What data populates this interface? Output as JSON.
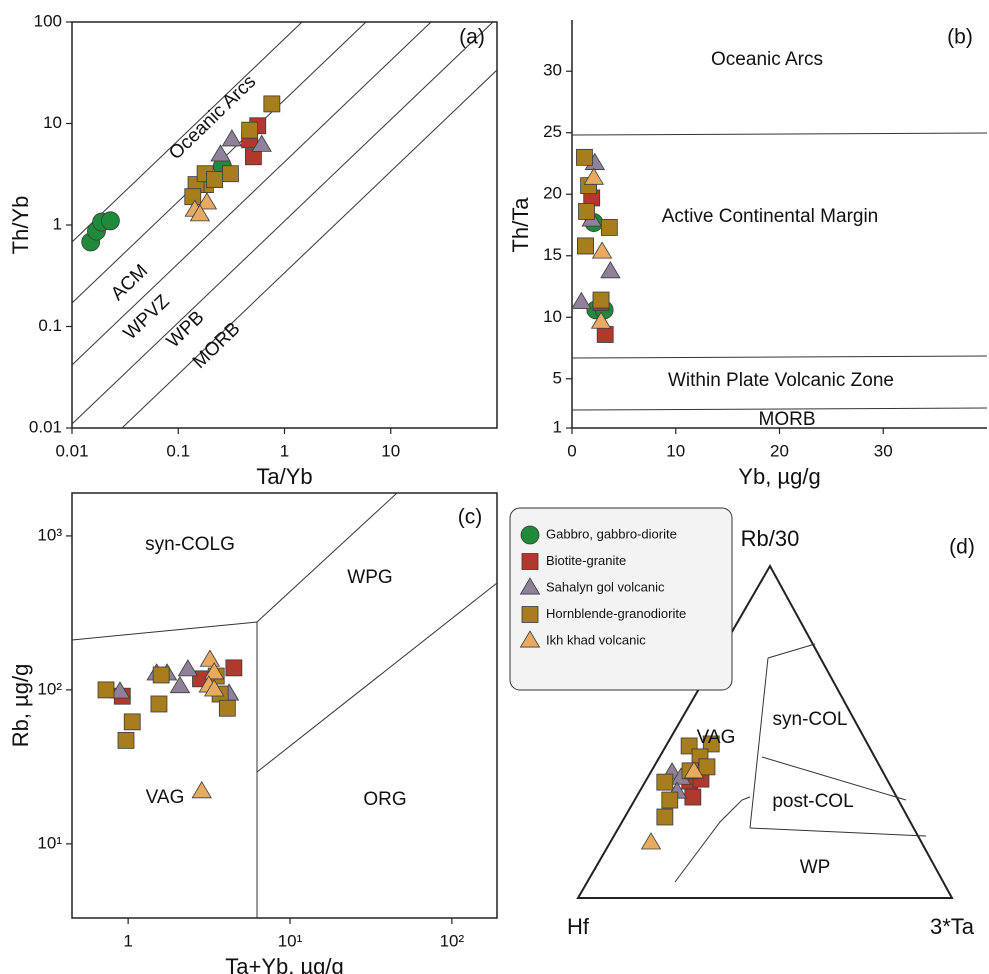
{
  "chart_data": [
    {
      "type": "scatter",
      "panel": "(a)",
      "xlabel": "Ta/Yb",
      "ylabel": "Th/Yb",
      "xscale": "log",
      "yscale": "log",
      "xlim": [
        0.01,
        100
      ],
      "ylim": [
        0.01,
        100
      ],
      "xticks": [
        0.01,
        0.1,
        1,
        10
      ],
      "yticks": [
        0.01,
        0.1,
        1,
        10,
        100
      ],
      "annotations": [
        "Oceanic Arcs",
        "ACM",
        "WPVZ",
        "WPB",
        "MORB"
      ],
      "series": [
        {
          "x": [
            0.015,
            0.017,
            0.019,
            0.023,
            0.26
          ],
          "y": [
            0.68,
            0.87,
            1.07,
            1.1,
            3.8
          ]
        },
        {
          "x": [
            0.56,
            0.47,
            0.51
          ],
          "y": [
            9.5,
            6.9,
            4.7
          ]
        },
        {
          "x": [
            0.32,
            0.61,
            0.25
          ],
          "y": [
            6.9,
            6.1,
            4.9
          ]
        },
        {
          "x": [
            0.76,
            0.47,
            0.31,
            0.18,
            0.147,
            0.137,
            0.179,
            0.22
          ],
          "y": [
            15.6,
            8.6,
            3.2,
            2.5,
            2.5,
            1.9,
            3.2,
            2.8
          ]
        },
        {
          "x": [
            0.186,
            0.143,
            0.16
          ],
          "y": [
            1.65,
            1.4,
            1.26
          ]
        }
      ]
    },
    {
      "type": "scatter",
      "panel": "(b)",
      "xlabel": "Yb, µg/g",
      "ylabel": "Th/Ta",
      "xscale": "linear",
      "yscale": "linear",
      "xlim": [
        0,
        40
      ],
      "ylim": [
        1,
        34
      ],
      "xticks": [
        0,
        10,
        20,
        30
      ],
      "yticks": [
        1,
        5,
        10,
        15,
        20,
        25,
        30
      ],
      "annotations": [
        "Oceanic Arcs",
        "Active Continental Margin",
        "Within Plate Volcanic Zone",
        "MORB"
      ],
      "series": [
        {
          "x": [
            2.1,
            2.3,
            3.1
          ],
          "y": [
            17.7,
            10.6,
            10.6
          ]
        },
        {
          "x": [
            1.9,
            1.3,
            2.8,
            3.2
          ],
          "y": [
            19.7,
            15.8,
            11.2,
            8.6
          ]
        },
        {
          "x": [
            2.2,
            3.7,
            0.9,
            1.9
          ],
          "y": [
            22.5,
            13.7,
            11.2,
            17.9
          ]
        },
        {
          "x": [
            1.2,
            1.6,
            1.4,
            1.3,
            3.6,
            2.8
          ],
          "y": [
            23.0,
            20.7,
            18.6,
            15.8,
            17.3,
            11.4
          ]
        },
        {
          "x": [
            2.1,
            2.9,
            2.8
          ],
          "y": [
            21.3,
            15.3,
            9.6
          ]
        }
      ]
    },
    {
      "type": "scatter",
      "panel": "(c)",
      "xlabel": "Ta+Yb, µg/g",
      "ylabel": "Rb, µg/g",
      "xscale": "log",
      "yscale": "log",
      "xlim": [
        0.45,
        190
      ],
      "ylim": [
        3.3,
        1900
      ],
      "xticks": [
        1,
        {
          "value": 10,
          "label": "10¹"
        },
        {
          "value": 100,
          "label": "10²"
        }
      ],
      "yticks": [
        {
          "value": 10,
          "label": "10¹"
        },
        {
          "value": 100,
          "label": "10²"
        },
        {
          "value": 1000,
          "label": "10³"
        }
      ],
      "annotations": [
        "syn-COLG",
        "WPG",
        "VAG",
        "ORG"
      ],
      "series": [
        {
          "x": [],
          "y": []
        },
        {
          "x": [
            0.92,
            2.8,
            4.5
          ],
          "y": [
            91,
            118,
            139
          ]
        },
        {
          "x": [
            0.89,
            1.5,
            1.74,
            2.09,
            2.34,
            4.2
          ],
          "y": [
            97,
            127,
            127,
            105,
            135,
            94
          ]
        },
        {
          "x": [
            0.73,
            1.6,
            3.5,
            3.7,
            4.1,
            1.55,
            1.06,
            0.97
          ],
          "y": [
            100,
            125,
            123,
            94,
            76,
            81,
            62,
            47
          ]
        },
        {
          "x": [
            3.2,
            3.4,
            3.15,
            3.4,
            2.85
          ],
          "y": [
            156,
            129,
            106,
            100,
            21.8
          ]
        }
      ]
    },
    {
      "type": "ternary",
      "panel": "(d)",
      "apex_top": "Rb/30",
      "apex_left": "Hf",
      "apex_right": "3*Ta",
      "annotations": [
        "VAG",
        "syn-COL",
        "post-COL",
        "WP"
      ],
      "series": [
        {
          "name": "Gabbro, gabbro-diorite",
          "color": "#1f8a3a",
          "marker": "circle",
          "values": []
        },
        {
          "name": "Biotite-granite",
          "color": "#b0392e",
          "marker": "square",
          "values": [
            [
              53.0,
              35.2,
              11.8
            ],
            [
              49.7,
              35.8,
              14.5
            ],
            [
              54.5,
              30.4,
              15.1
            ]
          ]
        },
        {
          "name": "Sahalyn gol volcanic",
          "color": "#8e8199",
          "marker": "triangle",
          "values": [
            [
              56.5,
              37.7,
              5.8
            ],
            [
              54.9,
              36.1,
              9.0
            ],
            [
              58.0,
              31.9,
              10.1
            ]
          ]
        },
        {
          "name": "Hornblende-granodiorite",
          "color": "#a77d1e",
          "marker": "square",
          "values": [
            [
              48.0,
              45.8,
              6.2
            ],
            [
              41.8,
              46.4,
              11.8
            ],
            [
              46.7,
              42.5,
              10.8
            ],
            [
              46.3,
              39.5,
              14.2
            ],
            [
              51.4,
              38.3,
              10.3
            ],
            [
              59.8,
              34.9,
              5.3
            ],
            [
              61.1,
              29.5,
              9.4
            ],
            [
              64.9,
              24.4,
              10.7
            ]
          ]
        },
        {
          "name": "Ikh khad volcanic",
          "color": "#e8aa60",
          "marker": "triangle",
          "values": [
            [
              72.4,
              16.6,
              11.0
            ],
            [
              50.5,
              38.0,
              11.5
            ]
          ]
        }
      ]
    }
  ]
}
